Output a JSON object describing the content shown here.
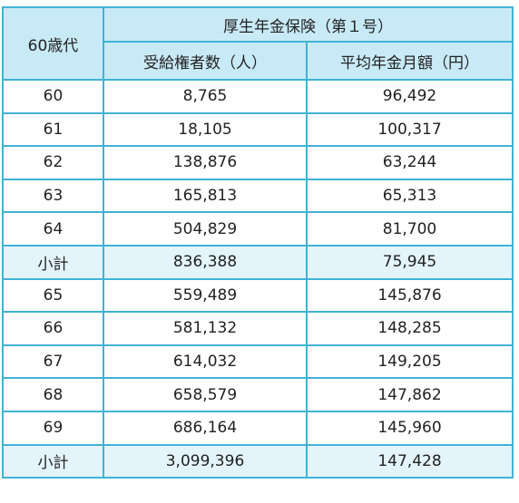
{
  "table": {
    "age_header": "60歳代",
    "group_header": "厚生年金保険（第１号）",
    "col_recipients": "受給権者数（人）",
    "col_average": "平均年金月額（円）",
    "rows": [
      {
        "age": "60",
        "recipients": "8,765",
        "average": "96,492"
      },
      {
        "age": "61",
        "recipients": "18,105",
        "average": "100,317"
      },
      {
        "age": "62",
        "recipients": "138,876",
        "average": "63,244"
      },
      {
        "age": "63",
        "recipients": "165,813",
        "average": "65,313"
      },
      {
        "age": "64",
        "recipients": "504,829",
        "average": "81,700"
      },
      {
        "age": "小計",
        "recipients": "836,388",
        "average": "75,945"
      },
      {
        "age": "65",
        "recipients": "559,489",
        "average": "145,876"
      },
      {
        "age": "66",
        "recipients": "581,132",
        "average": "148,285"
      },
      {
        "age": "67",
        "recipients": "614,032",
        "average": "149,205"
      },
      {
        "age": "68",
        "recipients": "658,579",
        "average": "147,862"
      },
      {
        "age": "69",
        "recipients": "686,164",
        "average": "145,960"
      },
      {
        "age": "小計",
        "recipients": "3,099,396",
        "average": "147,428"
      }
    ]
  },
  "colors": {
    "border": "#3fb3d6",
    "header_bg": "#c8eaf7",
    "subtotal_bg": "#e3f4fb"
  }
}
